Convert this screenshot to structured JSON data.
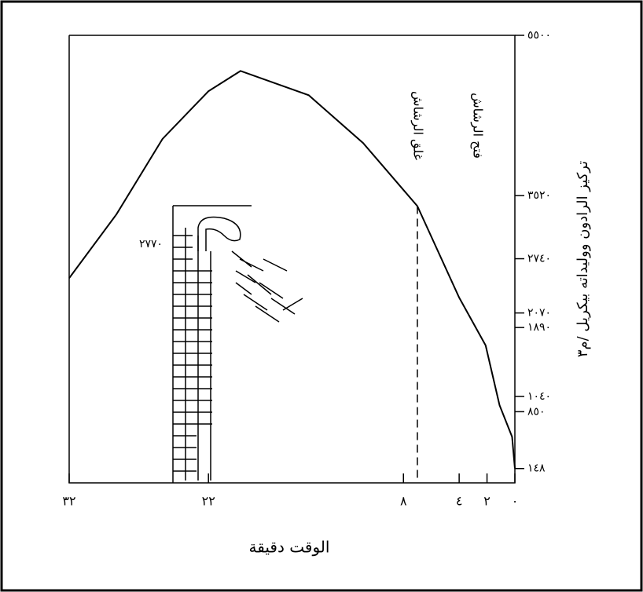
{
  "chart_data": {
    "type": "line",
    "x_label": "الوقت دقيقة",
    "y_label": "تركيز الرادون ووليداته بيكريل /م٣",
    "x": [
      32,
      28.6,
      25.3,
      22,
      19.7,
      14.8,
      10.9,
      7,
      4,
      2.1,
      1.1,
      0.2,
      0
    ],
    "series": [
      {
        "color": "#000000",
        "values": [
          2500,
          3290,
          4220,
          4810,
          5060,
          4760,
          4170,
          3390,
          2260,
          1670,
          930,
          540,
          150
        ]
      }
    ],
    "xlim": [
      32,
      0
    ],
    "xticks": [
      {
        "value": 32,
        "label": "٣٢"
      },
      {
        "value": 22,
        "label": "٢٢"
      },
      {
        "value": 8,
        "label": "٨"
      },
      {
        "value": 4,
        "label": "٤"
      },
      {
        "value": 2,
        "label": "٢"
      },
      {
        "value": 0,
        "label": "٠"
      }
    ],
    "ylim": [
      0,
      5500
    ],
    "yticks": [
      {
        "value": 5500,
        "label": "٥٥٠٠"
      },
      {
        "value": 3520,
        "label": "٣٥٢٠"
      },
      {
        "value": 2740,
        "label": "٢٧٤٠"
      },
      {
        "value": 2070,
        "label": "٢٠٧٠"
      },
      {
        "value": 1890,
        "label": "١٨٩٠"
      },
      {
        "value": 1040,
        "label": "١٠٤٠"
      },
      {
        "value": 850,
        "label": "٨٥٠"
      },
      {
        "value": 148,
        "label": "١٤٨"
      }
    ],
    "events": [
      {
        "x": 7,
        "label": "غلق الرشاش"
      },
      {
        "x": 0,
        "label": "فتح الرشاش"
      }
    ],
    "annotation": "٢٧٧٠"
  }
}
